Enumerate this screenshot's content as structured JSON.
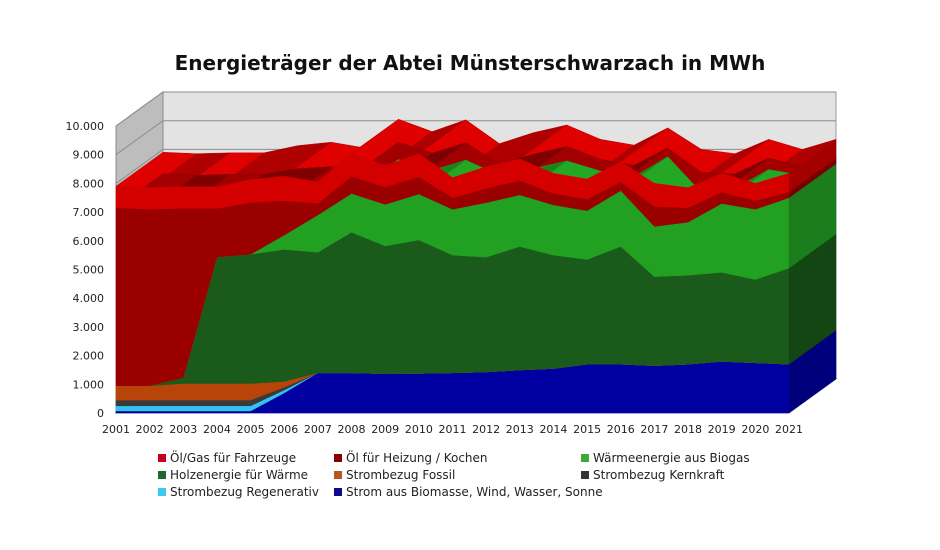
{
  "chart_data": {
    "type": "area",
    "stacked": true,
    "three_d": true,
    "title": "Energieträger der Abtei Münsterschwarzach in MWh",
    "xlabel": "",
    "ylabel": "",
    "ylim": [
      0,
      10000
    ],
    "yticks": [
      0,
      1000,
      2000,
      3000,
      4000,
      5000,
      6000,
      7000,
      8000,
      9000,
      10000
    ],
    "ytick_labels": [
      "0",
      "1.000",
      "2.000",
      "3.000",
      "4.000",
      "5.000",
      "6.000",
      "7.000",
      "8.000",
      "9.000",
      "10.000"
    ],
    "grid": true,
    "legend_position": "bottom",
    "categories": [
      "2001",
      "2002",
      "2003",
      "2004",
      "2005",
      "2006",
      "2007",
      "2008",
      "2009",
      "2010",
      "2011",
      "2012",
      "2013",
      "2014",
      "2015",
      "2016",
      "2017",
      "2018",
      "2019",
      "2020",
      "2021"
    ],
    "series": [
      {
        "name": "Strom aus Biomasse, Wind, Wasser, Sonne",
        "color": "#0000a0",
        "values": [
          70,
          70,
          70,
          70,
          70,
          700,
          1400,
          1400,
          1370,
          1380,
          1400,
          1430,
          1500,
          1550,
          1700,
          1700,
          1650,
          1700,
          1800,
          1750,
          1700
        ]
      },
      {
        "name": "Strombezug Regenerativ",
        "color": "#33c3f0",
        "values": [
          180,
          180,
          180,
          180,
          180,
          100,
          0,
          0,
          0,
          0,
          0,
          0,
          0,
          0,
          0,
          0,
          0,
          0,
          0,
          0,
          0
        ]
      },
      {
        "name": "Strombezug Kernkraft",
        "color": "#3a3a3a",
        "values": [
          200,
          200,
          200,
          200,
          200,
          100,
          0,
          0,
          0,
          0,
          0,
          0,
          0,
          0,
          0,
          0,
          0,
          0,
          0,
          0,
          0
        ]
      },
      {
        "name": "Strombezug Fossil",
        "color": "#b8440a",
        "values": [
          500,
          500,
          580,
          580,
          580,
          200,
          0,
          0,
          0,
          0,
          0,
          0,
          0,
          0,
          0,
          0,
          0,
          0,
          0,
          0,
          0
        ]
      },
      {
        "name": "Holzenergie für Wärme",
        "color": "#1a5a1a",
        "values": [
          0,
          0,
          200,
          4400,
          4500,
          4600,
          4200,
          4900,
          4450,
          4650,
          4100,
          4000,
          4300,
          3950,
          3650,
          4100,
          3100,
          3100,
          3100,
          2900,
          3350
        ]
      },
      {
        "name": "Wärmeenergie aus Biogas",
        "color": "#22a022",
        "values": [
          0,
          0,
          0,
          0,
          0,
          500,
          1300,
          1350,
          1450,
          1600,
          1600,
          1900,
          1800,
          1750,
          1700,
          1950,
          1750,
          1850,
          2400,
          2450,
          2450
        ]
      },
      {
        "name": "Öl für Heizung / Kochen",
        "color": "#9a0000",
        "values": [
          6200,
          6150,
          5900,
          1700,
          1800,
          1200,
          400,
          600,
          600,
          600,
          400,
          500,
          500,
          400,
          400,
          300,
          700,
          500,
          400,
          300,
          200
        ]
      },
      {
        "name": "Öl/Gas  für Fahrzeuge",
        "color": "#d40000",
        "values": [
          750,
          750,
          750,
          750,
          800,
          850,
          750,
          800,
          750,
          800,
          700,
          750,
          750,
          700,
          700,
          700,
          800,
          700,
          650,
          600,
          650
        ]
      }
    ]
  },
  "legend": [
    {
      "label": "Öl/Gas  für Fahrzeuge",
      "color": "#c4001a"
    },
    {
      "label": "Öl für Heizung / Kochen",
      "color": "#8a0000"
    },
    {
      "label": "Wärmeenergie aus Biogas",
      "color": "#3aaa3a"
    },
    {
      "label": "Holzenergie für Wärme",
      "color": "#1e6a2a"
    },
    {
      "label": "Strombezug Fossil",
      "color": "#b45a1e"
    },
    {
      "label": "Strombezug Kernkraft",
      "color": "#333333"
    },
    {
      "label": "Strombezug Regenerativ",
      "color": "#3cc8f0"
    },
    {
      "label": "Strom aus Biomasse, Wind, Wasser, Sonne",
      "color": "#0a0a8c"
    }
  ]
}
